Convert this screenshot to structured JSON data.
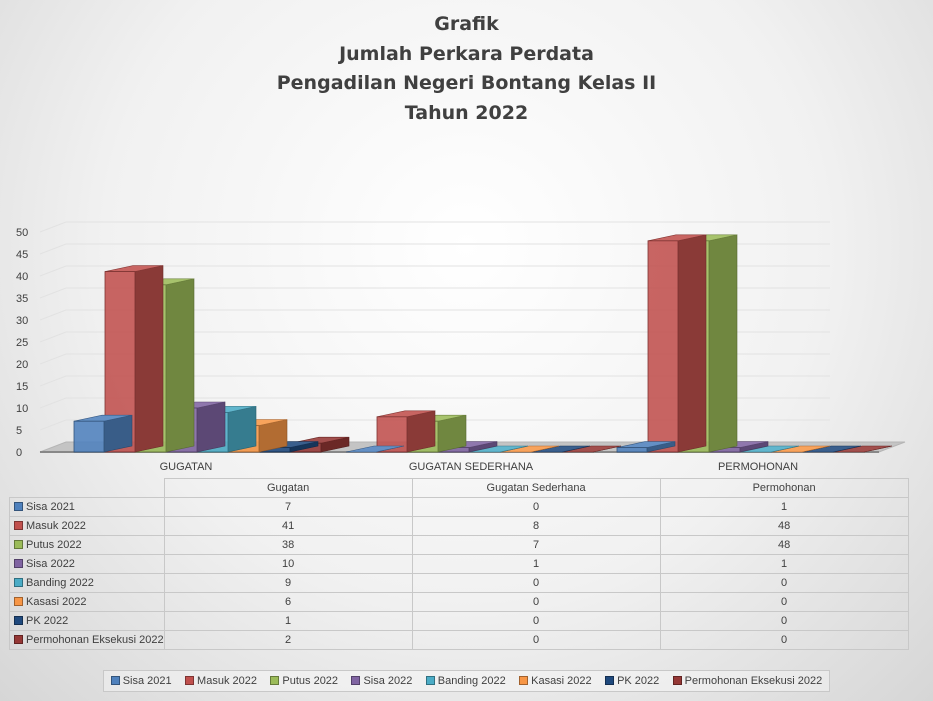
{
  "title_lines": [
    "Grafik",
    "Jumlah Perkara Perdata",
    "Pengadilan Negeri Bontang Kelas II",
    "Tahun 2022"
  ],
  "chart_data": {
    "type": "bar",
    "subtype": "3d-clustered-column",
    "categories": [
      "GUGATAN",
      "GUGATAN SEDERHANA",
      "PERMOHONAN"
    ],
    "table_headers": [
      "Gugatan",
      "Gugatan Sederhana",
      "Permohonan"
    ],
    "ylim": [
      0,
      50
    ],
    "yticks": [
      0,
      5,
      10,
      15,
      20,
      25,
      30,
      35,
      40,
      45,
      50
    ],
    "grid": true,
    "legend_position": "bottom",
    "series": [
      {
        "name": "Sisa 2021",
        "values": [
          7,
          0,
          1
        ],
        "color": "#4f81bd"
      },
      {
        "name": "Masuk 2022",
        "values": [
          41,
          8,
          48
        ],
        "color": "#c0504d"
      },
      {
        "name": "Putus 2022",
        "values": [
          38,
          7,
          48
        ],
        "color": "#9bbb59"
      },
      {
        "name": "Sisa 2022",
        "values": [
          10,
          1,
          1
        ],
        "color": "#8064a2"
      },
      {
        "name": "Banding 2022",
        "values": [
          9,
          0,
          0
        ],
        "color": "#4bacc6"
      },
      {
        "name": "Kasasi 2022",
        "values": [
          6,
          0,
          0
        ],
        "color": "#f79646"
      },
      {
        "name": "PK 2022",
        "values": [
          1,
          0,
          0
        ],
        "color": "#1f497d"
      },
      {
        "name": "Permohonan Eksekusi 2022",
        "values": [
          2,
          0,
          0
        ],
        "color": "#953735"
      }
    ]
  }
}
